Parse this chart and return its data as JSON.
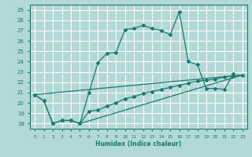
{
  "title": "",
  "xlabel": "Humidex (Indice chaleur)",
  "bg_color": "#b2d8d8",
  "grid_color": "#ffffff",
  "line_color": "#1a7a6e",
  "xlim": [
    -0.5,
    23.5
  ],
  "ylim": [
    17.5,
    29.5
  ],
  "xticks": [
    0,
    1,
    2,
    3,
    4,
    5,
    6,
    7,
    8,
    9,
    10,
    11,
    12,
    13,
    14,
    15,
    16,
    17,
    18,
    19,
    20,
    21,
    22,
    23
  ],
  "yticks": [
    18,
    19,
    20,
    21,
    22,
    23,
    24,
    25,
    26,
    27,
    28,
    29
  ],
  "line1_x": [
    0,
    1,
    2,
    3,
    4,
    5,
    6,
    7,
    8,
    9,
    10,
    11,
    12,
    13,
    14,
    15,
    16,
    17,
    18,
    19,
    20,
    21,
    22
  ],
  "line1_y": [
    20.8,
    20.2,
    18.0,
    18.3,
    18.3,
    18.0,
    21.0,
    23.9,
    24.8,
    24.9,
    27.1,
    27.2,
    27.5,
    27.2,
    27.0,
    26.6,
    28.8,
    24.0,
    23.7,
    21.4,
    21.4,
    21.3,
    22.8
  ],
  "line2_x": [
    0,
    1,
    2,
    3,
    4,
    5,
    6,
    7,
    8,
    9,
    10,
    11,
    12,
    13,
    14,
    15,
    16,
    17,
    18,
    19,
    20,
    21,
    22,
    23
  ],
  "line2_y": [
    20.8,
    20.2,
    18.0,
    18.3,
    18.3,
    18.0,
    19.2,
    19.3,
    19.7,
    20.0,
    20.4,
    20.6,
    20.9,
    21.1,
    21.3,
    21.5,
    21.7,
    21.9,
    22.1,
    22.2,
    22.3,
    22.5,
    22.6,
    22.7
  ],
  "line3_x": [
    0,
    23
  ],
  "line3_y": [
    20.8,
    22.7
  ],
  "line4_x": [
    5,
    23
  ],
  "line4_y": [
    18.0,
    22.7
  ]
}
